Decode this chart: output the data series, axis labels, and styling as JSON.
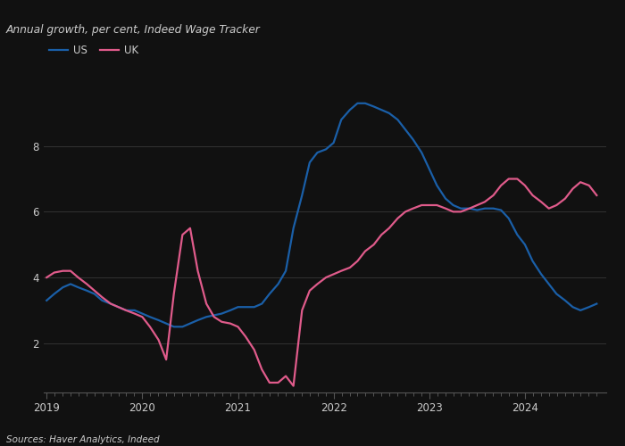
{
  "title": "Annual growth, per cent, Indeed Wage Tracker",
  "source": "Sources: Haver Analytics, Indeed",
  "us_color": "#1a5fa8",
  "uk_color": "#e05b8b",
  "background_color": "#111111",
  "text_color": "#cccccc",
  "grid_color": "#333333",
  "axis_color": "#555555",
  "ylim": [
    0.5,
    10.0
  ],
  "yticks": [
    2,
    4,
    6,
    8
  ],
  "us_data": [
    [
      2019.0,
      3.3
    ],
    [
      2019.08,
      3.5
    ],
    [
      2019.17,
      3.7
    ],
    [
      2019.25,
      3.8
    ],
    [
      2019.33,
      3.7
    ],
    [
      2019.42,
      3.6
    ],
    [
      2019.5,
      3.5
    ],
    [
      2019.58,
      3.3
    ],
    [
      2019.67,
      3.2
    ],
    [
      2019.75,
      3.1
    ],
    [
      2019.83,
      3.0
    ],
    [
      2019.92,
      3.0
    ],
    [
      2020.0,
      2.9
    ],
    [
      2020.08,
      2.8
    ],
    [
      2020.17,
      2.7
    ],
    [
      2020.25,
      2.6
    ],
    [
      2020.33,
      2.5
    ],
    [
      2020.42,
      2.5
    ],
    [
      2020.5,
      2.6
    ],
    [
      2020.58,
      2.7
    ],
    [
      2020.67,
      2.8
    ],
    [
      2020.75,
      2.85
    ],
    [
      2020.83,
      2.9
    ],
    [
      2020.92,
      3.0
    ],
    [
      2021.0,
      3.1
    ],
    [
      2021.08,
      3.1
    ],
    [
      2021.17,
      3.1
    ],
    [
      2021.25,
      3.2
    ],
    [
      2021.33,
      3.5
    ],
    [
      2021.42,
      3.8
    ],
    [
      2021.5,
      4.2
    ],
    [
      2021.58,
      5.5
    ],
    [
      2021.67,
      6.5
    ],
    [
      2021.75,
      7.5
    ],
    [
      2021.83,
      7.8
    ],
    [
      2021.92,
      7.9
    ],
    [
      2022.0,
      8.1
    ],
    [
      2022.08,
      8.8
    ],
    [
      2022.17,
      9.1
    ],
    [
      2022.25,
      9.3
    ],
    [
      2022.33,
      9.3
    ],
    [
      2022.42,
      9.2
    ],
    [
      2022.5,
      9.1
    ],
    [
      2022.58,
      9.0
    ],
    [
      2022.67,
      8.8
    ],
    [
      2022.75,
      8.5
    ],
    [
      2022.83,
      8.2
    ],
    [
      2022.92,
      7.8
    ],
    [
      2023.0,
      7.3
    ],
    [
      2023.08,
      6.8
    ],
    [
      2023.17,
      6.4
    ],
    [
      2023.25,
      6.2
    ],
    [
      2023.33,
      6.1
    ],
    [
      2023.42,
      6.1
    ],
    [
      2023.5,
      6.05
    ],
    [
      2023.58,
      6.1
    ],
    [
      2023.67,
      6.1
    ],
    [
      2023.75,
      6.05
    ],
    [
      2023.83,
      5.8
    ],
    [
      2023.92,
      5.3
    ],
    [
      2024.0,
      5.0
    ],
    [
      2024.08,
      4.5
    ],
    [
      2024.17,
      4.1
    ],
    [
      2024.25,
      3.8
    ],
    [
      2024.33,
      3.5
    ],
    [
      2024.42,
      3.3
    ],
    [
      2024.5,
      3.1
    ],
    [
      2024.58,
      3.0
    ],
    [
      2024.67,
      3.1
    ],
    [
      2024.75,
      3.2
    ]
  ],
  "uk_data": [
    [
      2019.0,
      4.0
    ],
    [
      2019.08,
      4.15
    ],
    [
      2019.17,
      4.2
    ],
    [
      2019.25,
      4.2
    ],
    [
      2019.33,
      4.0
    ],
    [
      2019.42,
      3.8
    ],
    [
      2019.5,
      3.6
    ],
    [
      2019.58,
      3.4
    ],
    [
      2019.67,
      3.2
    ],
    [
      2019.75,
      3.1
    ],
    [
      2019.83,
      3.0
    ],
    [
      2019.92,
      2.9
    ],
    [
      2020.0,
      2.8
    ],
    [
      2020.08,
      2.5
    ],
    [
      2020.17,
      2.1
    ],
    [
      2020.25,
      1.5
    ],
    [
      2020.33,
      3.5
    ],
    [
      2020.42,
      5.3
    ],
    [
      2020.5,
      5.5
    ],
    [
      2020.58,
      4.2
    ],
    [
      2020.67,
      3.2
    ],
    [
      2020.75,
      2.8
    ],
    [
      2020.83,
      2.65
    ],
    [
      2020.92,
      2.6
    ],
    [
      2021.0,
      2.5
    ],
    [
      2021.08,
      2.2
    ],
    [
      2021.17,
      1.8
    ],
    [
      2021.25,
      1.2
    ],
    [
      2021.33,
      0.8
    ],
    [
      2021.42,
      0.8
    ],
    [
      2021.5,
      1.0
    ],
    [
      2021.58,
      0.7
    ],
    [
      2021.67,
      3.0
    ],
    [
      2021.75,
      3.6
    ],
    [
      2021.83,
      3.8
    ],
    [
      2021.92,
      4.0
    ],
    [
      2022.0,
      4.1
    ],
    [
      2022.08,
      4.2
    ],
    [
      2022.17,
      4.3
    ],
    [
      2022.25,
      4.5
    ],
    [
      2022.33,
      4.8
    ],
    [
      2022.42,
      5.0
    ],
    [
      2022.5,
      5.3
    ],
    [
      2022.58,
      5.5
    ],
    [
      2022.67,
      5.8
    ],
    [
      2022.75,
      6.0
    ],
    [
      2022.83,
      6.1
    ],
    [
      2022.92,
      6.2
    ],
    [
      2023.0,
      6.2
    ],
    [
      2023.08,
      6.2
    ],
    [
      2023.17,
      6.1
    ],
    [
      2023.25,
      6.0
    ],
    [
      2023.33,
      6.0
    ],
    [
      2023.42,
      6.1
    ],
    [
      2023.5,
      6.2
    ],
    [
      2023.58,
      6.3
    ],
    [
      2023.67,
      6.5
    ],
    [
      2023.75,
      6.8
    ],
    [
      2023.83,
      7.0
    ],
    [
      2023.92,
      7.0
    ],
    [
      2024.0,
      6.8
    ],
    [
      2024.08,
      6.5
    ],
    [
      2024.17,
      6.3
    ],
    [
      2024.25,
      6.1
    ],
    [
      2024.33,
      6.2
    ],
    [
      2024.42,
      6.4
    ],
    [
      2024.5,
      6.7
    ],
    [
      2024.58,
      6.9
    ],
    [
      2024.67,
      6.8
    ],
    [
      2024.75,
      6.5
    ]
  ]
}
